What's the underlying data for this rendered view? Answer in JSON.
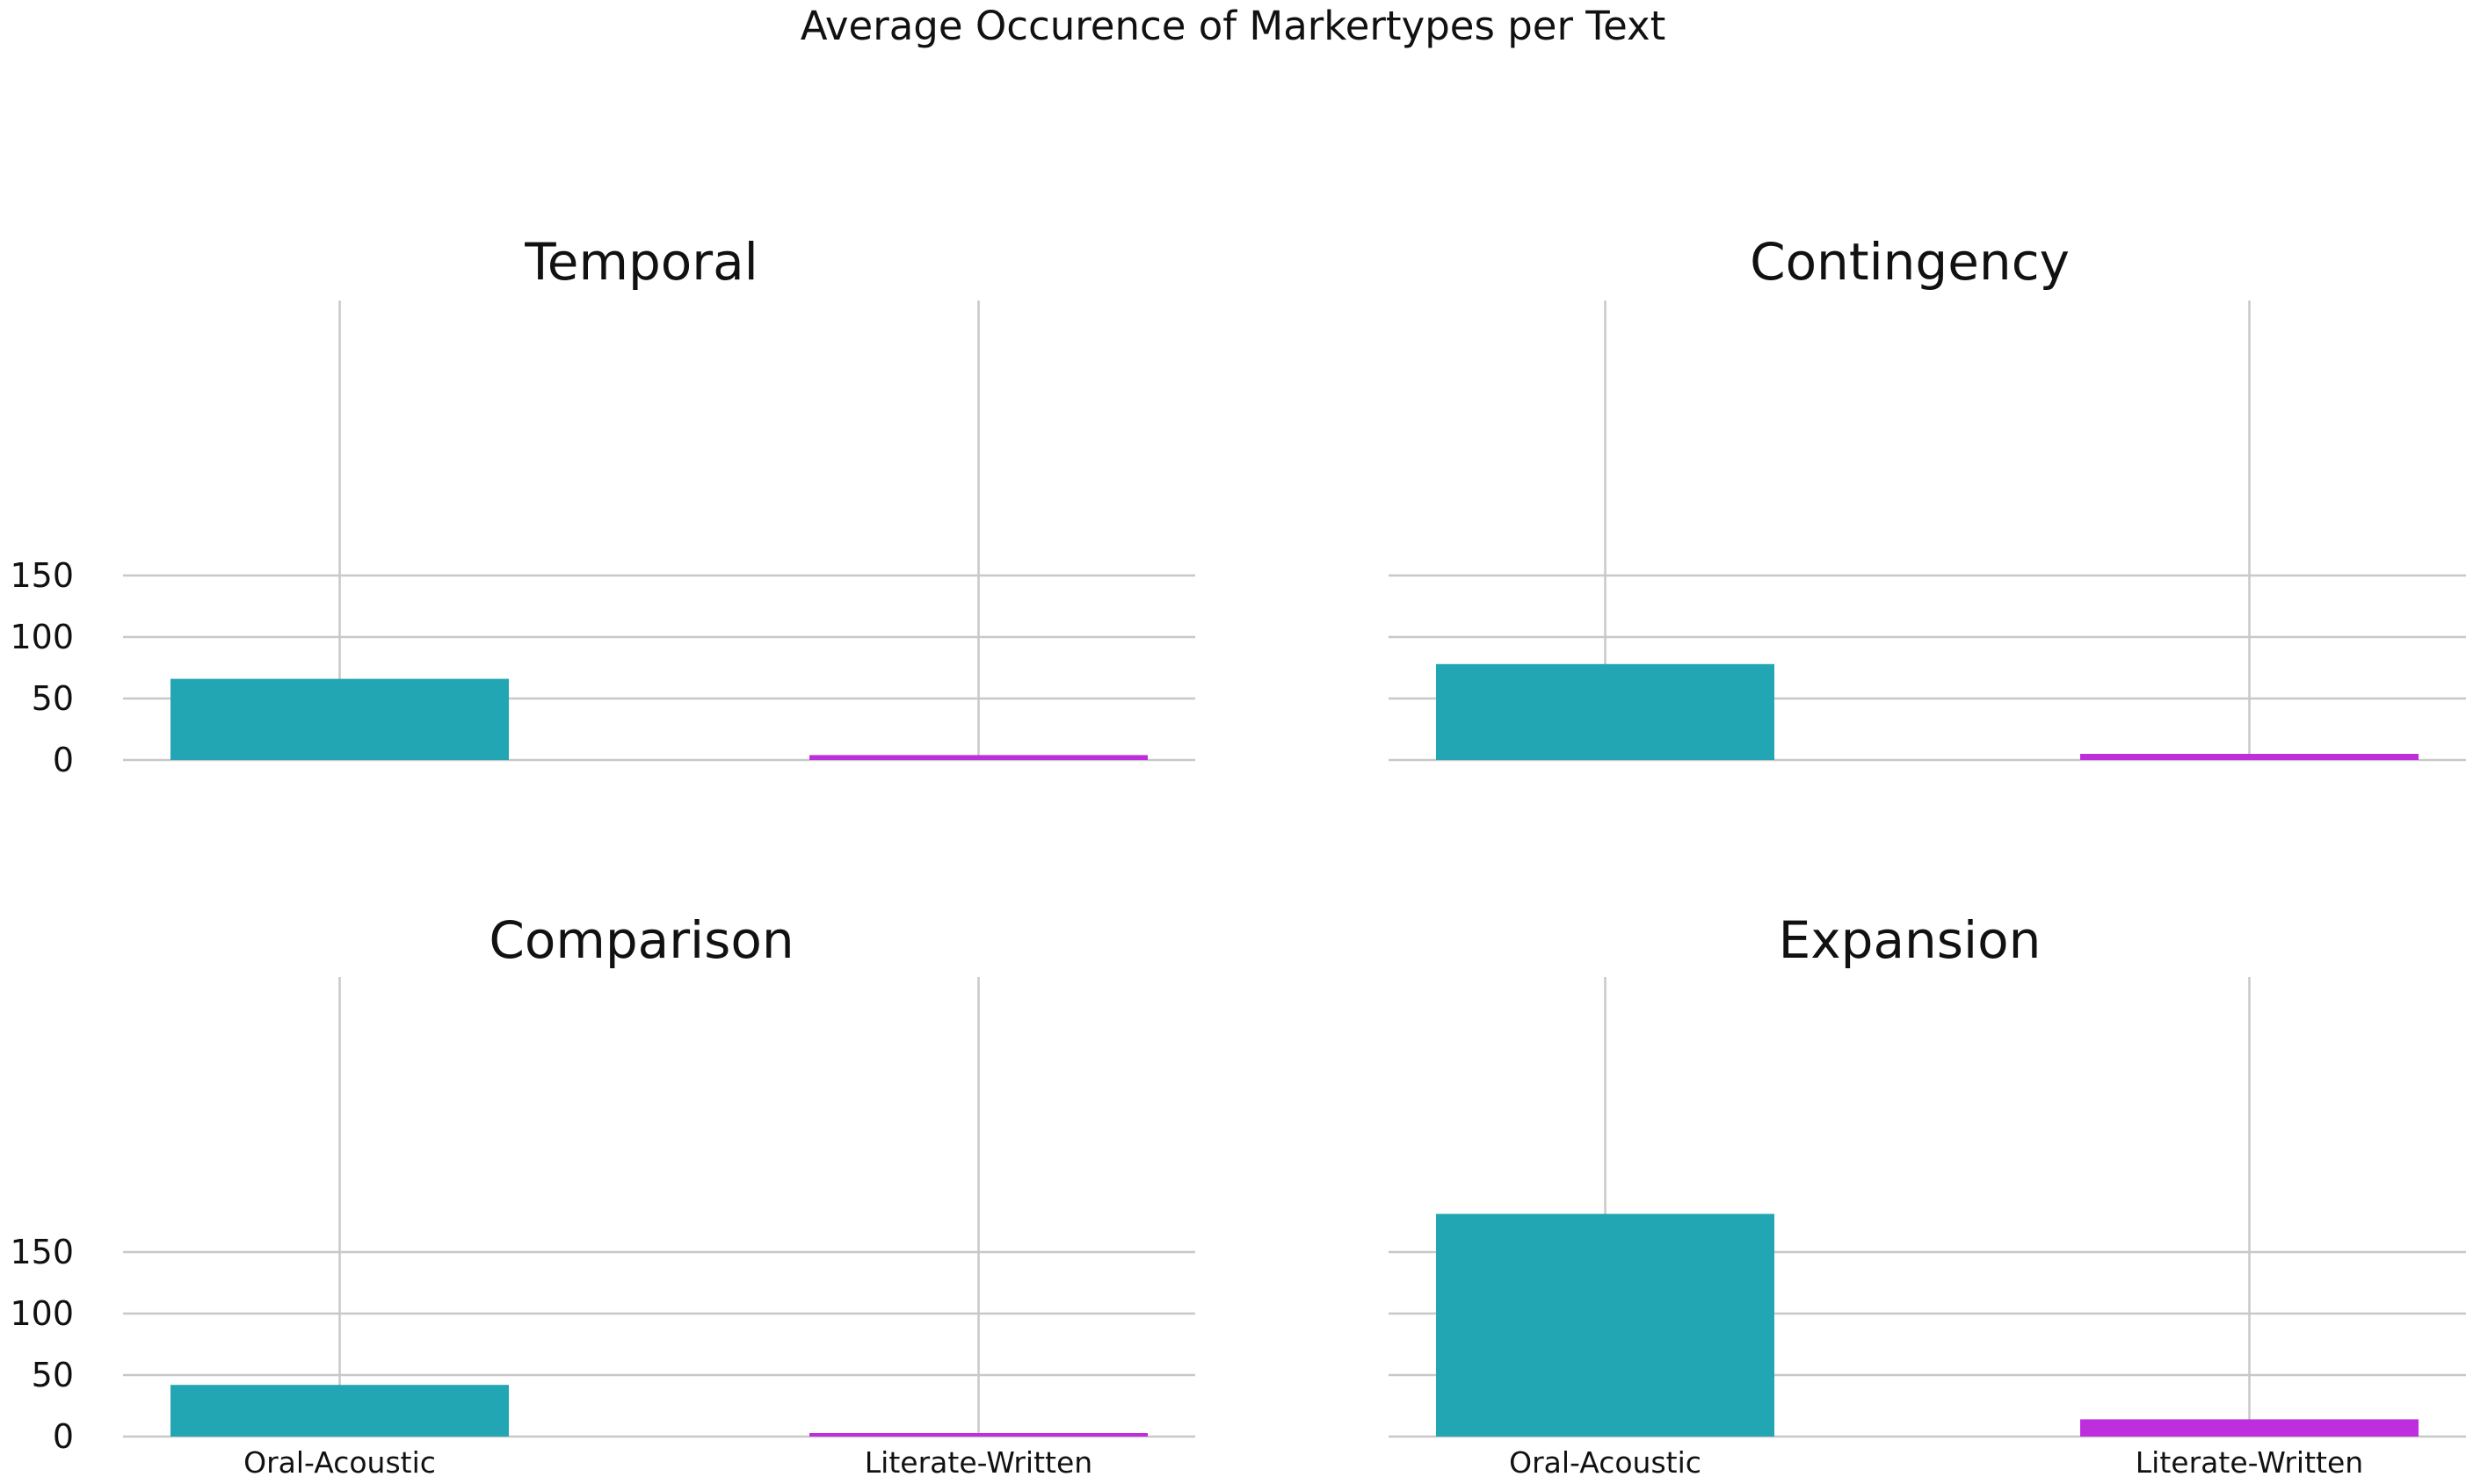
{
  "chart_data": {
    "type": "bar",
    "title": "Average Occurence of Markertypes per Text",
    "categories": [
      "Oral-Acoustic",
      "Literate-Written"
    ],
    "colors": {
      "Oral-Acoustic": "#22a6b3",
      "Literate-Written": "#be2edd"
    },
    "ylim": [
      0,
      190
    ],
    "yticks": [
      0,
      50,
      100,
      150
    ],
    "grid": true,
    "shared_y": true,
    "panels": [
      {
        "title": "Temporal",
        "values": [
          66,
          4
        ]
      },
      {
        "title": "Contingency",
        "values": [
          78,
          5
        ]
      },
      {
        "title": "Comparison",
        "values": [
          42,
          2
        ]
      },
      {
        "title": "Expansion",
        "values": [
          181,
          14
        ]
      }
    ]
  }
}
